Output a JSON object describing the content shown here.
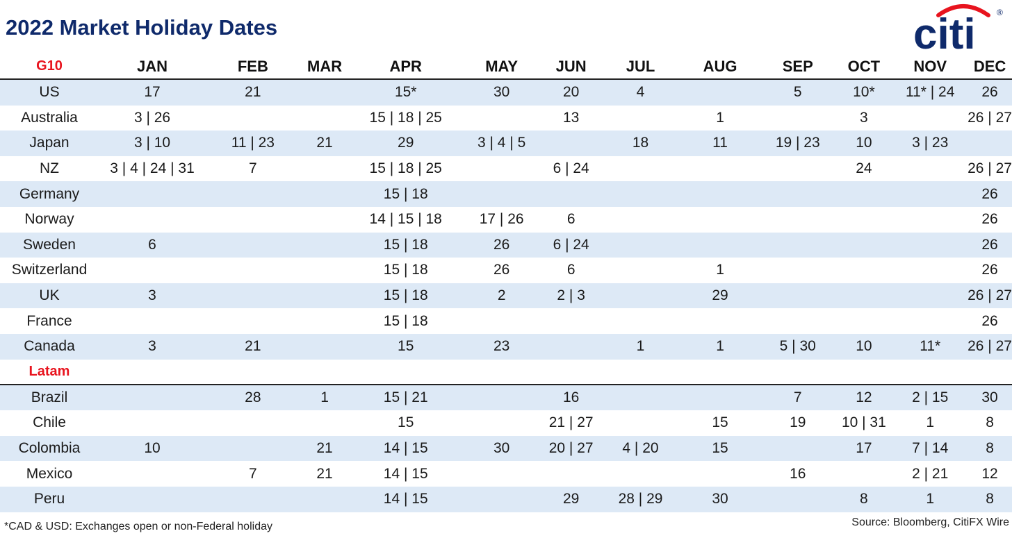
{
  "title": "2022 Market Holiday Dates",
  "logo": {
    "text": "citi",
    "icon": "citi-arc-logo",
    "registered": "®",
    "blue": "#0f2a6b",
    "red": "#e8141e"
  },
  "months": [
    "JAN",
    "FEB",
    "MAR",
    "APR",
    "MAY",
    "JUN",
    "JUL",
    "AUG",
    "SEP",
    "OCT",
    "NOV",
    "DEC"
  ],
  "groups": [
    {
      "label": "G10",
      "rows": [
        {
          "country": "US",
          "cells": [
            "17",
            "21",
            "",
            "15*",
            "30",
            "20",
            "4",
            "",
            "5",
            "10*",
            "11* | 24",
            "26"
          ]
        },
        {
          "country": "Australia",
          "cells": [
            "3 | 26",
            "",
            "",
            "15 | 18 | 25",
            "",
            "13",
            "",
            "1",
            "",
            "3",
            "",
            "26 | 27"
          ]
        },
        {
          "country": "Japan",
          "cells": [
            "3 | 10",
            "11 | 23",
            "21",
            "29",
            "3 | 4 | 5",
            "",
            "18",
            "11",
            "19 | 23",
            "10",
            "3 | 23",
            ""
          ]
        },
        {
          "country": "NZ",
          "cells": [
            "3 | 4 | 24 | 31",
            "7",
            "",
            "15 | 18 | 25",
            "",
            "6 | 24",
            "",
            "",
            "",
            "24",
            "",
            "26 | 27"
          ]
        },
        {
          "country": "Germany",
          "cells": [
            "",
            "",
            "",
            "15 | 18",
            "",
            "",
            "",
            "",
            "",
            "",
            "",
            "26"
          ]
        },
        {
          "country": "Norway",
          "cells": [
            "",
            "",
            "",
            "14 | 15 | 18",
            "17 | 26",
            "6",
            "",
            "",
            "",
            "",
            "",
            "26"
          ]
        },
        {
          "country": "Sweden",
          "cells": [
            "6",
            "",
            "",
            "15 | 18",
            "26",
            "6 | 24",
            "",
            "",
            "",
            "",
            "",
            "26"
          ]
        },
        {
          "country": "Switzerland",
          "cells": [
            "",
            "",
            "",
            "15 | 18",
            "26",
            "6",
            "",
            "1",
            "",
            "",
            "",
            "26"
          ]
        },
        {
          "country": "UK",
          "cells": [
            "3",
            "",
            "",
            "15 | 18",
            "2",
            "2 | 3",
            "",
            "29",
            "",
            "",
            "",
            "26 | 27"
          ]
        },
        {
          "country": "France",
          "cells": [
            "",
            "",
            "",
            "15 | 18",
            "",
            "",
            "",
            "",
            "",
            "",
            "",
            "26"
          ]
        },
        {
          "country": "Canada",
          "cells": [
            "3",
            "21",
            "",
            "15",
            "23",
            "",
            "1",
            "1",
            "5 | 30",
            "10",
            "11*",
            "26 | 27"
          ]
        }
      ]
    },
    {
      "label": "Latam",
      "rows": [
        {
          "country": "Brazil",
          "cells": [
            "",
            "28",
            "1",
            "15 | 21",
            "",
            "16",
            "",
            "",
            "7",
            "12",
            "2 | 15",
            "30"
          ]
        },
        {
          "country": "Chile",
          "cells": [
            "",
            "",
            "",
            "15",
            "",
            "21 | 27",
            "",
            "15",
            "19",
            "10 | 31",
            "1",
            "8"
          ]
        },
        {
          "country": "Colombia",
          "cells": [
            "10",
            "",
            "21",
            "14 | 15",
            "30",
            "20 | 27",
            "4 | 20",
            "15",
            "",
            "17",
            "7 | 14",
            "8"
          ]
        },
        {
          "country": "Mexico",
          "cells": [
            "",
            "7",
            "21",
            "14 | 15",
            "",
            "",
            "",
            "",
            "16",
            "",
            "2 | 21",
            "12"
          ]
        },
        {
          "country": "Peru",
          "cells": [
            "",
            "",
            "",
            "14 | 15",
            "",
            "29",
            "28 | 29",
            "30",
            "",
            "8",
            "1",
            "8"
          ]
        }
      ]
    }
  ],
  "footnote": "*CAD & USD: Exchanges open or non-Federal holiday",
  "source": "Source: Bloomberg, CitiFX Wire",
  "colors": {
    "shade": "#dde9f6",
    "accent_red": "#e8141e",
    "title_blue": "#0f2a6b"
  }
}
